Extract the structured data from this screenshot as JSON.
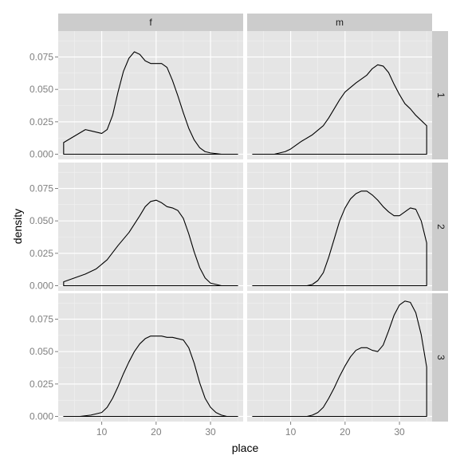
{
  "chart_data": {
    "type": "area",
    "xlabel": "place",
    "ylabel": "density",
    "xlim": [
      2,
      36
    ],
    "ylim": [
      -0.004,
      0.095
    ],
    "x_ticks": [
      10,
      20,
      30
    ],
    "x_tick_labels": [
      "10",
      "20",
      "30"
    ],
    "y_ticks": [
      0.0,
      0.025,
      0.05,
      0.075
    ],
    "y_tick_labels": [
      "0.000",
      "0.025",
      "0.050",
      "0.075"
    ],
    "column_facets": [
      "f",
      "m"
    ],
    "row_facets": [
      "1",
      "2",
      "3"
    ],
    "grid": true,
    "colors": {
      "panel_background": "#e5e5e5",
      "grid_major": "#ffffff",
      "grid_minor": "#f2f2f2",
      "strip_background": "#cccccc",
      "line": "#000000"
    },
    "panels": [
      {
        "column": "f",
        "row": "1",
        "points": [
          [
            3,
            0.009
          ],
          [
            5,
            0.014
          ],
          [
            7,
            0.019
          ],
          [
            8,
            0.018
          ],
          [
            10,
            0.016
          ],
          [
            11,
            0.019
          ],
          [
            12,
            0.03
          ],
          [
            13,
            0.048
          ],
          [
            14,
            0.064
          ],
          [
            15,
            0.074
          ],
          [
            16,
            0.079
          ],
          [
            17,
            0.077
          ],
          [
            18,
            0.072
          ],
          [
            19,
            0.07
          ],
          [
            20,
            0.07
          ],
          [
            21,
            0.07
          ],
          [
            22,
            0.067
          ],
          [
            23,
            0.057
          ],
          [
            24,
            0.045
          ],
          [
            25,
            0.032
          ],
          [
            26,
            0.02
          ],
          [
            27,
            0.011
          ],
          [
            28,
            0.005
          ],
          [
            29,
            0.002
          ],
          [
            30,
            0.001
          ],
          [
            32,
            0.0
          ],
          [
            35,
            0.0
          ]
        ]
      },
      {
        "column": "m",
        "row": "1",
        "points": [
          [
            3,
            0.0
          ],
          [
            5,
            0.0
          ],
          [
            7,
            0.0
          ],
          [
            8,
            0.001
          ],
          [
            9,
            0.002
          ],
          [
            10,
            0.004
          ],
          [
            12,
            0.01
          ],
          [
            14,
            0.015
          ],
          [
            16,
            0.022
          ],
          [
            17,
            0.028
          ],
          [
            18,
            0.035
          ],
          [
            19,
            0.042
          ],
          [
            20,
            0.048
          ],
          [
            22,
            0.055
          ],
          [
            24,
            0.061
          ],
          [
            25,
            0.066
          ],
          [
            26,
            0.069
          ],
          [
            27,
            0.068
          ],
          [
            28,
            0.063
          ],
          [
            29,
            0.054
          ],
          [
            30,
            0.046
          ],
          [
            31,
            0.039
          ],
          [
            32,
            0.035
          ],
          [
            33,
            0.03
          ],
          [
            34,
            0.026
          ],
          [
            35,
            0.022
          ]
        ]
      },
      {
        "column": "f",
        "row": "2",
        "points": [
          [
            3,
            0.003
          ],
          [
            5,
            0.006
          ],
          [
            7,
            0.009
          ],
          [
            9,
            0.013
          ],
          [
            11,
            0.02
          ],
          [
            13,
            0.031
          ],
          [
            15,
            0.041
          ],
          [
            17,
            0.054
          ],
          [
            18,
            0.061
          ],
          [
            19,
            0.065
          ],
          [
            20,
            0.066
          ],
          [
            21,
            0.064
          ],
          [
            22,
            0.061
          ],
          [
            23,
            0.06
          ],
          [
            24,
            0.058
          ],
          [
            25,
            0.052
          ],
          [
            26,
            0.04
          ],
          [
            27,
            0.026
          ],
          [
            28,
            0.014
          ],
          [
            29,
            0.006
          ],
          [
            30,
            0.002
          ],
          [
            31,
            0.001
          ],
          [
            32,
            0.0
          ],
          [
            35,
            0.0
          ]
        ]
      },
      {
        "column": "m",
        "row": "2",
        "points": [
          [
            3,
            0.0
          ],
          [
            10,
            0.0
          ],
          [
            13,
            0.0
          ],
          [
            14,
            0.001
          ],
          [
            15,
            0.004
          ],
          [
            16,
            0.01
          ],
          [
            17,
            0.022
          ],
          [
            18,
            0.036
          ],
          [
            19,
            0.05
          ],
          [
            20,
            0.06
          ],
          [
            21,
            0.067
          ],
          [
            22,
            0.071
          ],
          [
            23,
            0.073
          ],
          [
            24,
            0.073
          ],
          [
            25,
            0.07
          ],
          [
            26,
            0.066
          ],
          [
            27,
            0.061
          ],
          [
            28,
            0.057
          ],
          [
            29,
            0.054
          ],
          [
            30,
            0.054
          ],
          [
            31,
            0.057
          ],
          [
            32,
            0.06
          ],
          [
            33,
            0.059
          ],
          [
            34,
            0.05
          ],
          [
            35,
            0.033
          ]
        ]
      },
      {
        "column": "f",
        "row": "3",
        "points": [
          [
            3,
            0.0
          ],
          [
            6,
            0.0
          ],
          [
            8,
            0.001
          ],
          [
            9,
            0.002
          ],
          [
            10,
            0.003
          ],
          [
            11,
            0.007
          ],
          [
            12,
            0.014
          ],
          [
            13,
            0.023
          ],
          [
            14,
            0.033
          ],
          [
            15,
            0.042
          ],
          [
            16,
            0.05
          ],
          [
            17,
            0.056
          ],
          [
            18,
            0.06
          ],
          [
            19,
            0.062
          ],
          [
            20,
            0.062
          ],
          [
            21,
            0.062
          ],
          [
            22,
            0.061
          ],
          [
            23,
            0.061
          ],
          [
            24,
            0.06
          ],
          [
            25,
            0.059
          ],
          [
            26,
            0.053
          ],
          [
            27,
            0.041
          ],
          [
            28,
            0.026
          ],
          [
            29,
            0.014
          ],
          [
            30,
            0.007
          ],
          [
            31,
            0.003
          ],
          [
            32,
            0.001
          ],
          [
            33,
            0.0
          ],
          [
            35,
            0.0
          ]
        ]
      },
      {
        "column": "m",
        "row": "3",
        "points": [
          [
            3,
            0.0
          ],
          [
            10,
            0.0
          ],
          [
            13,
            0.0
          ],
          [
            14,
            0.001
          ],
          [
            15,
            0.003
          ],
          [
            16,
            0.007
          ],
          [
            17,
            0.014
          ],
          [
            18,
            0.022
          ],
          [
            19,
            0.031
          ],
          [
            20,
            0.039
          ],
          [
            21,
            0.046
          ],
          [
            22,
            0.051
          ],
          [
            23,
            0.053
          ],
          [
            24,
            0.053
          ],
          [
            25,
            0.051
          ],
          [
            26,
            0.05
          ],
          [
            27,
            0.055
          ],
          [
            28,
            0.066
          ],
          [
            29,
            0.078
          ],
          [
            30,
            0.086
          ],
          [
            31,
            0.089
          ],
          [
            32,
            0.088
          ],
          [
            33,
            0.08
          ],
          [
            34,
            0.063
          ],
          [
            35,
            0.038
          ]
        ]
      }
    ]
  }
}
